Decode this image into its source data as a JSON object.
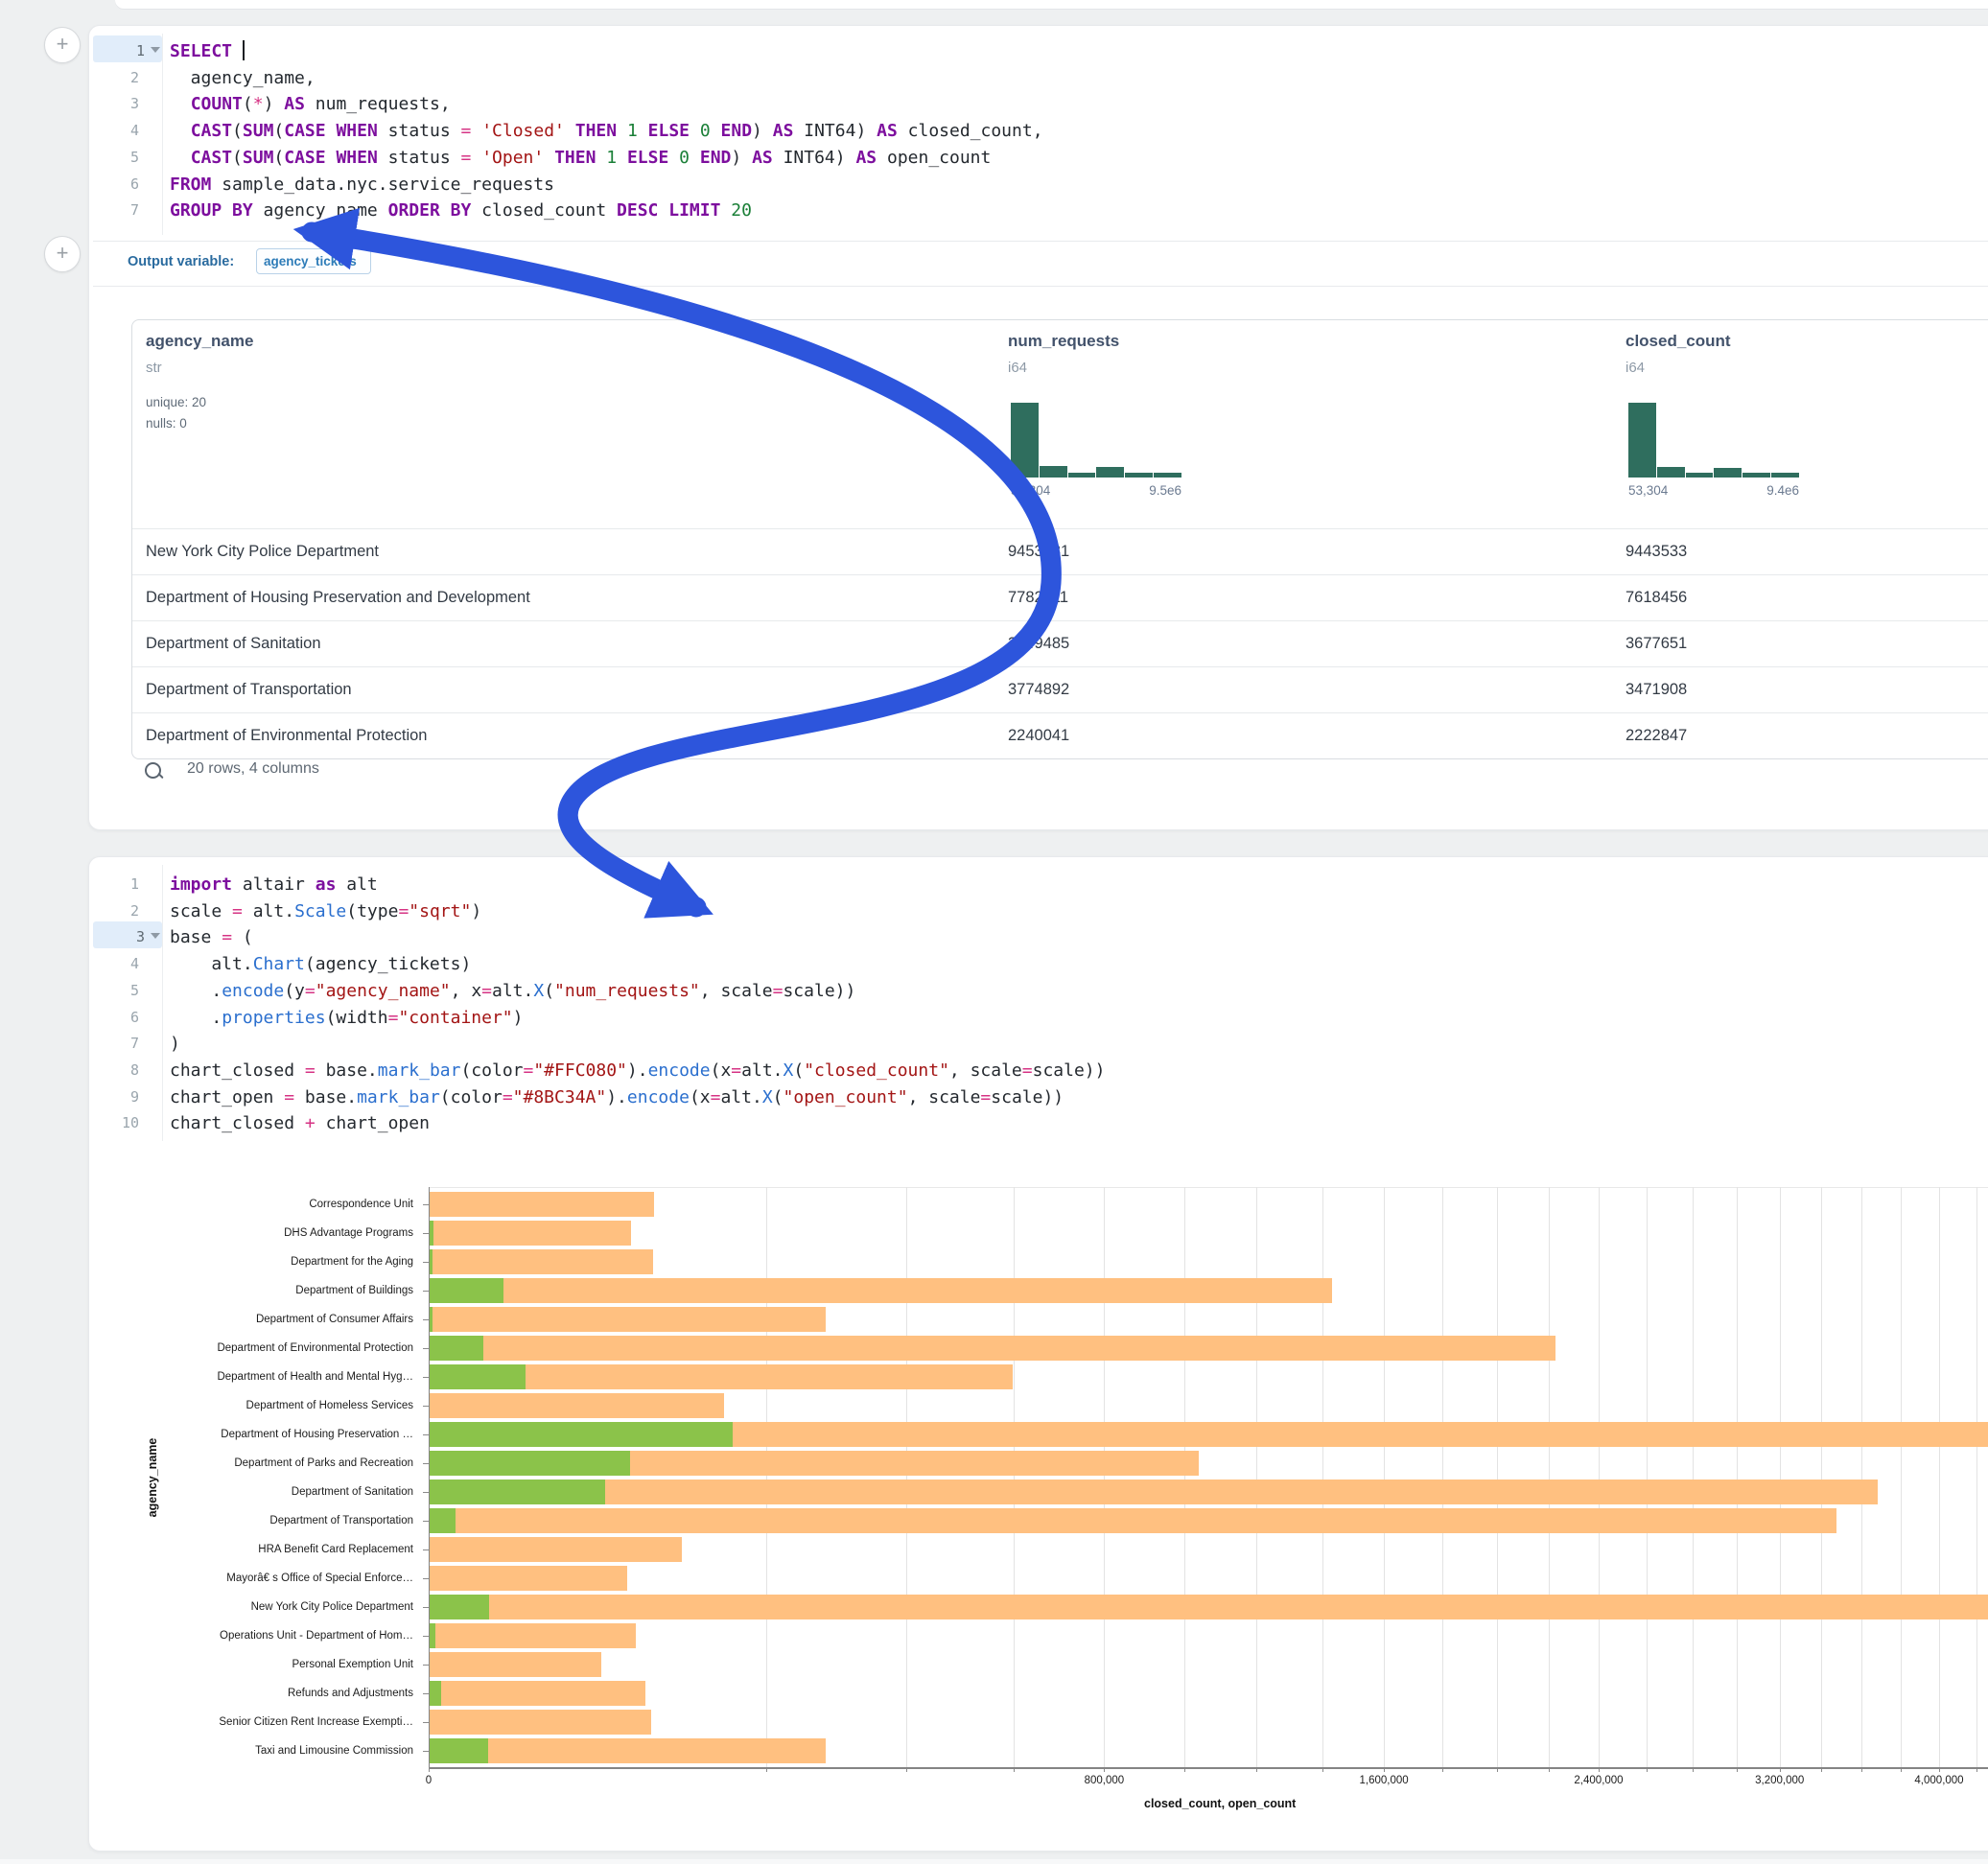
{
  "colors": {
    "accent_arrow": "#2d55dc",
    "histogram": "#2f6e5e",
    "bar_closed": "#FFC080",
    "bar_open": "#8BC34A",
    "keyword": "#7d0f9e",
    "string": "#a31515",
    "number": "#1a7f37"
  },
  "sql_cell": {
    "line_numbers": [
      "1",
      "2",
      "3",
      "4",
      "5",
      "6",
      "7"
    ],
    "lines": [
      [
        [
          "kw",
          "SELECT"
        ],
        [
          "pl",
          " "
        ],
        [
          "cursor",
          ""
        ]
      ],
      [
        [
          "pl",
          "  agency_name,"
        ]
      ],
      [
        [
          "pl",
          "  "
        ],
        [
          "kw",
          "COUNT"
        ],
        [
          "pl",
          "("
        ],
        [
          "op",
          "*"
        ],
        [
          "pl",
          ") "
        ],
        [
          "kw",
          "AS"
        ],
        [
          "pl",
          " num_requests,"
        ]
      ],
      [
        [
          "pl",
          "  "
        ],
        [
          "kw",
          "CAST"
        ],
        [
          "pl",
          "("
        ],
        [
          "kw",
          "SUM"
        ],
        [
          "pl",
          "("
        ],
        [
          "kw",
          "CASE"
        ],
        [
          "pl",
          " "
        ],
        [
          "kw",
          "WHEN"
        ],
        [
          "pl",
          " status "
        ],
        [
          "op",
          "="
        ],
        [
          "pl",
          " "
        ],
        [
          "str",
          "'Closed'"
        ],
        [
          "pl",
          " "
        ],
        [
          "kw",
          "THEN"
        ],
        [
          "pl",
          " "
        ],
        [
          "num",
          "1"
        ],
        [
          "pl",
          " "
        ],
        [
          "kw",
          "ELSE"
        ],
        [
          "pl",
          " "
        ],
        [
          "num",
          "0"
        ],
        [
          "pl",
          " "
        ],
        [
          "kw",
          "END"
        ],
        [
          "pl",
          ") "
        ],
        [
          "kw",
          "AS"
        ],
        [
          "pl",
          " INT64) "
        ],
        [
          "kw",
          "AS"
        ],
        [
          "pl",
          " closed_count,"
        ]
      ],
      [
        [
          "pl",
          "  "
        ],
        [
          "kw",
          "CAST"
        ],
        [
          "pl",
          "("
        ],
        [
          "kw",
          "SUM"
        ],
        [
          "pl",
          "("
        ],
        [
          "kw",
          "CASE"
        ],
        [
          "pl",
          " "
        ],
        [
          "kw",
          "WHEN"
        ],
        [
          "pl",
          " status "
        ],
        [
          "op",
          "="
        ],
        [
          "pl",
          " "
        ],
        [
          "str",
          "'Open'"
        ],
        [
          "pl",
          " "
        ],
        [
          "kw",
          "THEN"
        ],
        [
          "pl",
          " "
        ],
        [
          "num",
          "1"
        ],
        [
          "pl",
          " "
        ],
        [
          "kw",
          "ELSE"
        ],
        [
          "pl",
          " "
        ],
        [
          "num",
          "0"
        ],
        [
          "pl",
          " "
        ],
        [
          "kw",
          "END"
        ],
        [
          "pl",
          ") "
        ],
        [
          "kw",
          "AS"
        ],
        [
          "pl",
          " INT64) "
        ],
        [
          "kw",
          "AS"
        ],
        [
          "pl",
          " open_count"
        ]
      ],
      [
        [
          "kw",
          "FROM"
        ],
        [
          "pl",
          " sample_data.nyc.service_requests"
        ]
      ],
      [
        [
          "kw",
          "GROUP"
        ],
        [
          "pl",
          " "
        ],
        [
          "kw",
          "BY"
        ],
        [
          "pl",
          " agency_name "
        ],
        [
          "kw",
          "ORDER"
        ],
        [
          "pl",
          " "
        ],
        [
          "kw",
          "BY"
        ],
        [
          "pl",
          " closed_count "
        ],
        [
          "kw",
          "DESC"
        ],
        [
          "pl",
          " "
        ],
        [
          "kw",
          "LIMIT"
        ],
        [
          "pl",
          " "
        ],
        [
          "num",
          "20"
        ]
      ]
    ],
    "active_line": 0
  },
  "output_variable": {
    "label": "Output variable:",
    "value": "agency_tickets"
  },
  "table": {
    "columns": [
      {
        "name": "agency_name",
        "type": "str",
        "stats": [
          "unique: 20",
          "nulls: 0"
        ],
        "x": 14
      },
      {
        "name": "num_requests",
        "type": "i64",
        "x": 913,
        "histogram": {
          "values": [
            1,
            0.15,
            0.07,
            0.14,
            0.07,
            0.07
          ],
          "min_label": "53,304",
          "max_label": "9.5e6"
        }
      },
      {
        "name": "closed_count",
        "type": "i64",
        "x": 1557,
        "histogram": {
          "values": [
            1,
            0.14,
            0.07,
            0.13,
            0.07,
            0.06
          ],
          "min_label": "53,304",
          "max_label": "9.4e6"
        }
      }
    ],
    "rows": [
      [
        "New York City Police Department",
        "9453131",
        "9443533"
      ],
      [
        "Department of Housing Preservation and Development",
        "7782211",
        "7618456"
      ],
      [
        "Department of Sanitation",
        "3749485",
        "3677651"
      ],
      [
        "Department of Transportation",
        "3774892",
        "3471908"
      ],
      [
        "Department of Environmental Protection",
        "2240041",
        "2222847"
      ]
    ],
    "footer": "20 rows, 4 columns"
  },
  "python_cell": {
    "line_numbers": [
      "1",
      "2",
      "3",
      "4",
      "5",
      "6",
      "7",
      "8",
      "9",
      "10"
    ],
    "lines": [
      [
        [
          "kw",
          "import"
        ],
        [
          "pl",
          " altair "
        ],
        [
          "kw",
          "as"
        ],
        [
          "pl",
          " alt"
        ]
      ],
      [
        [
          "pl",
          "scale "
        ],
        [
          "op",
          "="
        ],
        [
          "pl",
          " alt."
        ],
        [
          "fn",
          "Scale"
        ],
        [
          "pl",
          "(type"
        ],
        [
          "op",
          "="
        ],
        [
          "str",
          "\"sqrt\""
        ],
        [
          "pl",
          ")"
        ]
      ],
      [
        [
          "pl",
          "base "
        ],
        [
          "op",
          "="
        ],
        [
          "pl",
          " ("
        ]
      ],
      [
        [
          "pl",
          "    alt."
        ],
        [
          "fn",
          "Chart"
        ],
        [
          "pl",
          "(agency_tickets)"
        ]
      ],
      [
        [
          "pl",
          "    ."
        ],
        [
          "fn",
          "encode"
        ],
        [
          "pl",
          "(y"
        ],
        [
          "op",
          "="
        ],
        [
          "str",
          "\"agency_name\""
        ],
        [
          "pl",
          ", x"
        ],
        [
          "op",
          "="
        ],
        [
          "pl",
          "alt."
        ],
        [
          "fn",
          "X"
        ],
        [
          "pl",
          "("
        ],
        [
          "str",
          "\"num_requests\""
        ],
        [
          "pl",
          ", scale"
        ],
        [
          "op",
          "="
        ],
        [
          "pl",
          "scale))"
        ]
      ],
      [
        [
          "pl",
          "    ."
        ],
        [
          "fn",
          "properties"
        ],
        [
          "pl",
          "(width"
        ],
        [
          "op",
          "="
        ],
        [
          "str",
          "\"container\""
        ],
        [
          "pl",
          ")"
        ]
      ],
      [
        [
          "pl",
          ")"
        ]
      ],
      [
        [
          "pl",
          "chart_closed "
        ],
        [
          "op",
          "="
        ],
        [
          "pl",
          " base."
        ],
        [
          "fn",
          "mark_bar"
        ],
        [
          "pl",
          "(color"
        ],
        [
          "op",
          "="
        ],
        [
          "str",
          "\"#FFC080\""
        ],
        [
          "pl",
          ")."
        ],
        [
          "fn",
          "encode"
        ],
        [
          "pl",
          "(x"
        ],
        [
          "op",
          "="
        ],
        [
          "pl",
          "alt."
        ],
        [
          "fn",
          "X"
        ],
        [
          "pl",
          "("
        ],
        [
          "str",
          "\"closed_count\""
        ],
        [
          "pl",
          ", scale"
        ],
        [
          "op",
          "="
        ],
        [
          "pl",
          "scale))"
        ]
      ],
      [
        [
          "pl",
          "chart_open "
        ],
        [
          "op",
          "="
        ],
        [
          "pl",
          " base."
        ],
        [
          "fn",
          "mark_bar"
        ],
        [
          "pl",
          "(color"
        ],
        [
          "op",
          "="
        ],
        [
          "str",
          "\"#8BC34A\""
        ],
        [
          "pl",
          ")."
        ],
        [
          "fn",
          "encode"
        ],
        [
          "pl",
          "(x"
        ],
        [
          "op",
          "="
        ],
        [
          "pl",
          "alt."
        ],
        [
          "fn",
          "X"
        ],
        [
          "pl",
          "("
        ],
        [
          "str",
          "\"open_count\""
        ],
        [
          "pl",
          ", scale"
        ],
        [
          "op",
          "="
        ],
        [
          "pl",
          "scale))"
        ]
      ],
      [
        [
          "pl",
          "chart_closed "
        ],
        [
          "op",
          "+"
        ],
        [
          "pl",
          " chart_open"
        ]
      ]
    ],
    "active_line": 2
  },
  "chart_data": {
    "type": "bar",
    "orientation": "horizontal",
    "x_scale": "sqrt",
    "xlabel": "closed_count, open_count",
    "ylabel": "agency_name",
    "x_axis_max_labeled": 4000000,
    "gridline_step": 200000,
    "gridline_max": 4200000,
    "x_ticks": [
      {
        "value": 0,
        "label": "0"
      },
      {
        "value": 800000,
        "label": "800,000"
      },
      {
        "value": 1600000,
        "label": "1,600,000"
      },
      {
        "value": 2400000,
        "label": "2,400,000"
      },
      {
        "value": 3200000,
        "label": "3,200,000"
      },
      {
        "value": 4000000,
        "label": "4,000,000"
      }
    ],
    "categories": [
      "Correspondence Unit",
      "DHS Advantage Programs",
      "Department for the Aging",
      "Department of Buildings",
      "Department of Consumer Affairs",
      "Department of Environmental Protection",
      "Department of Health and Mental Hyg…",
      "Department of Homeless Services",
      "Department of Housing Preservation …",
      "Department of Parks and Recreation",
      "Department of Sanitation",
      "Department of Transportation",
      "HRA Benefit Card Replacement",
      "Mayorâ€ s Office of Special Enforce…",
      "New York City Police Department",
      "Operations Unit - Department of Hom…",
      "Personal Exemption Unit",
      "Refunds and Adjustments",
      "Senior Citizen Rent Increase Exempti…",
      "Taxi and Limousine Commission"
    ],
    "series": [
      {
        "name": "closed_count",
        "color": "#FFC080",
        "values": [
          88000,
          71000,
          87500,
          1428000,
          275000,
          2222847,
          596000,
          152000,
          7618456,
          1037000,
          3677651,
          3471908,
          111600,
          68400,
          9443533,
          74500,
          51700,
          81600,
          86000,
          275000
        ]
      },
      {
        "name": "open_count",
        "color": "#8BC34A",
        "values": [
          0,
          30,
          15,
          9500,
          15,
          5100,
          16100,
          0,
          161000,
          70300,
          54000,
          1200,
          0,
          0,
          6200,
          60,
          0,
          230,
          0,
          6000
        ]
      }
    ]
  }
}
